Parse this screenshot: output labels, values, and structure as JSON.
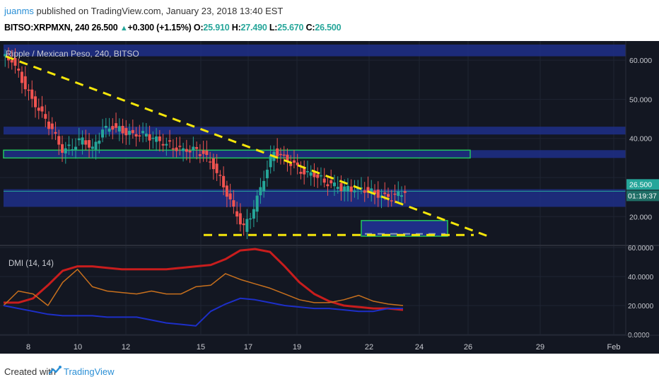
{
  "header": {
    "user": "juanms",
    "published": " published on TradingView.com, January 23, 2018 13:40 EST",
    "symbol_line": "BITSO:XRPMXN, 240  26.500",
    "change": "+0.300 (+1.15%)",
    "o_label": "O:",
    "o_val": "25.910",
    "h_label": "H:",
    "h_val": "27.490",
    "l_label": "L:",
    "l_val": "25.670",
    "c_label": "C:",
    "c_val": "26.500"
  },
  "footer": {
    "created": "Created with",
    "brand": "TradingView"
  },
  "colors": {
    "background": "#131722",
    "band": "#1e2f88",
    "up": "#26a69a",
    "down": "#ef5350",
    "trend": "#f5e60a",
    "box": "#22c55e",
    "adx": "#c81d1d",
    "diplus": "#c8701d",
    "diminus": "#1d2fc8"
  },
  "chart_data": [
    {
      "type": "candlestick",
      "title": "Ripple / Mexican Peso, 240, BITSO",
      "price_axis": {
        "ticks": [
          "60.000",
          "50.000",
          "40.000",
          "20.000"
        ],
        "range": [
          13,
          64
        ]
      },
      "last_price_label": "26.500",
      "countdown_label": "01:19:37",
      "x_ticks": [
        "8",
        "10",
        "12",
        "15",
        "17",
        "19",
        "22",
        "24",
        "26",
        "29",
        "Feb"
      ],
      "close_series": [
        [
          0,
          60
        ],
        [
          1,
          55
        ],
        [
          2,
          50
        ],
        [
          3,
          46
        ],
        [
          4,
          42
        ],
        [
          5,
          37
        ],
        [
          6,
          38
        ],
        [
          7,
          40
        ],
        [
          8,
          37
        ],
        [
          9,
          42
        ],
        [
          10,
          43
        ],
        [
          11,
          42
        ],
        [
          12,
          41
        ],
        [
          13,
          41
        ],
        [
          14,
          40
        ],
        [
          15,
          39
        ],
        [
          16,
          38
        ],
        [
          17,
          37
        ],
        [
          18,
          37
        ],
        [
          19,
          36
        ],
        [
          20,
          33
        ],
        [
          21,
          28
        ],
        [
          22,
          22
        ],
        [
          23,
          17
        ],
        [
          24,
          22
        ],
        [
          25,
          30
        ],
        [
          26,
          37
        ],
        [
          27,
          35
        ],
        [
          28,
          33
        ],
        [
          29,
          31
        ],
        [
          30,
          31
        ],
        [
          31,
          29
        ],
        [
          32,
          28
        ],
        [
          33,
          27
        ],
        [
          34,
          27
        ],
        [
          35,
          27
        ],
        [
          36,
          26
        ],
        [
          37,
          25
        ],
        [
          38,
          25
        ],
        [
          39,
          26.5
        ]
      ],
      "horizontal_zones": [
        {
          "from": 61,
          "to": 64
        },
        {
          "from": 41,
          "to": 43
        },
        {
          "from": 35,
          "to": 37
        },
        {
          "from": 22.5,
          "to": 27
        }
      ]
    },
    {
      "type": "line",
      "title": "DMI (14, 14)",
      "y_ticks": [
        "60.0000",
        "40.0000",
        "20.0000",
        "0.0000"
      ],
      "ylim": [
        0,
        60
      ],
      "series": [
        {
          "values": [
            22,
            22,
            25,
            34,
            44,
            47,
            47,
            46,
            45,
            45,
            45,
            45,
            46,
            47,
            48,
            52,
            58,
            59,
            57,
            47,
            36,
            28,
            23,
            20,
            19,
            18,
            18,
            17
          ]
        },
        {
          "values": [
            20,
            30,
            28,
            20,
            36,
            45,
            33,
            30,
            29,
            28,
            30,
            28,
            28,
            33,
            34,
            42,
            38,
            35,
            32,
            28,
            24,
            22,
            22,
            24,
            27,
            23,
            21,
            20
          ]
        },
        {
          "values": [
            20,
            18,
            16,
            14,
            13,
            13,
            13,
            12,
            12,
            12,
            10,
            8,
            7,
            6,
            16,
            21,
            25,
            24,
            22,
            20,
            19,
            18,
            18,
            17,
            16,
            16,
            18,
            18
          ]
        }
      ]
    }
  ]
}
